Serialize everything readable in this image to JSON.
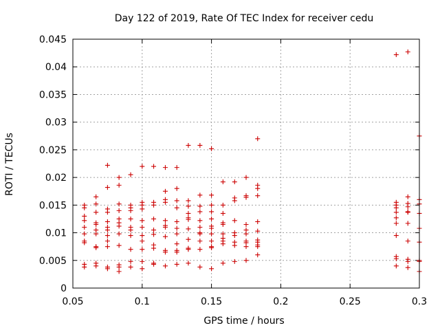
{
  "chart_data": {
    "type": "scatter",
    "title": "Day 122 of 2019, Rate Of TEC Index for receiver cedu",
    "xlabel": "GPS time / hours",
    "ylabel": "ROTI / TECUs",
    "xlim": [
      0.05,
      0.3
    ],
    "ylim": [
      0,
      0.045
    ],
    "xticks": [
      0.05,
      0.1,
      0.15,
      0.2,
      0.25,
      0.3
    ],
    "xtick_labels": [
      "0.05",
      "0.1",
      "0.15",
      "0.2",
      "0.25",
      "0.3"
    ],
    "yticks": [
      0,
      0.005,
      0.01,
      0.015,
      0.02,
      0.025,
      0.03,
      0.035,
      0.04,
      0.045
    ],
    "ytick_labels": [
      "0",
      "0.005",
      "0.01",
      "0.015",
      "0.02",
      "0.025",
      "0.03",
      "0.035",
      "0.04",
      "0.045"
    ],
    "grid": true,
    "marker": "plus",
    "color": "#cc0000",
    "series": [
      {
        "name": "ROTI",
        "points": [
          [
            0.0583,
            0.015
          ],
          [
            0.0583,
            0.0145
          ],
          [
            0.0583,
            0.013
          ],
          [
            0.0583,
            0.0122
          ],
          [
            0.0583,
            0.011
          ],
          [
            0.0583,
            0.0098
          ],
          [
            0.0583,
            0.0085
          ],
          [
            0.0583,
            0.0082
          ],
          [
            0.0583,
            0.0043
          ],
          [
            0.0583,
            0.0038
          ],
          [
            0.0667,
            0.0165
          ],
          [
            0.0667,
            0.0152
          ],
          [
            0.0667,
            0.0137
          ],
          [
            0.0667,
            0.0118
          ],
          [
            0.0667,
            0.0115
          ],
          [
            0.0667,
            0.0105
          ],
          [
            0.0667,
            0.0098
          ],
          [
            0.0667,
            0.0075
          ],
          [
            0.0667,
            0.0073
          ],
          [
            0.0667,
            0.0045
          ],
          [
            0.0667,
            0.004
          ],
          [
            0.075,
            0.0222
          ],
          [
            0.075,
            0.0182
          ],
          [
            0.075,
            0.0143
          ],
          [
            0.075,
            0.0137
          ],
          [
            0.075,
            0.012
          ],
          [
            0.075,
            0.011
          ],
          [
            0.075,
            0.0105
          ],
          [
            0.075,
            0.0095
          ],
          [
            0.075,
            0.0085
          ],
          [
            0.075,
            0.0075
          ],
          [
            0.075,
            0.0038
          ],
          [
            0.075,
            0.0035
          ],
          [
            0.0833,
            0.02
          ],
          [
            0.0833,
            0.0186
          ],
          [
            0.0833,
            0.0152
          ],
          [
            0.0833,
            0.014
          ],
          [
            0.0833,
            0.0125
          ],
          [
            0.0833,
            0.0118
          ],
          [
            0.0833,
            0.0112
          ],
          [
            0.0833,
            0.0098
          ],
          [
            0.0833,
            0.0077
          ],
          [
            0.0833,
            0.0042
          ],
          [
            0.0833,
            0.0038
          ],
          [
            0.0833,
            0.003
          ],
          [
            0.0917,
            0.0205
          ],
          [
            0.0917,
            0.015
          ],
          [
            0.0917,
            0.0145
          ],
          [
            0.0917,
            0.014
          ],
          [
            0.0917,
            0.0125
          ],
          [
            0.0917,
            0.011
          ],
          [
            0.0917,
            0.0105
          ],
          [
            0.0917,
            0.0095
          ],
          [
            0.0917,
            0.007
          ],
          [
            0.0917,
            0.0048
          ],
          [
            0.0917,
            0.0038
          ],
          [
            0.1,
            0.022
          ],
          [
            0.1,
            0.0155
          ],
          [
            0.1,
            0.015
          ],
          [
            0.1,
            0.0143
          ],
          [
            0.1,
            0.0122
          ],
          [
            0.1,
            0.011
          ],
          [
            0.1,
            0.0095
          ],
          [
            0.1,
            0.0085
          ],
          [
            0.1,
            0.007
          ],
          [
            0.1,
            0.0048
          ],
          [
            0.1,
            0.0035
          ],
          [
            0.1083,
            0.022
          ],
          [
            0.1083,
            0.0155
          ],
          [
            0.1083,
            0.015
          ],
          [
            0.1083,
            0.0125
          ],
          [
            0.1083,
            0.0105
          ],
          [
            0.1083,
            0.0097
          ],
          [
            0.1083,
            0.0078
          ],
          [
            0.1083,
            0.0072
          ],
          [
            0.1083,
            0.0045
          ],
          [
            0.1083,
            0.0043
          ],
          [
            0.1167,
            0.0218
          ],
          [
            0.1167,
            0.0175
          ],
          [
            0.1167,
            0.016
          ],
          [
            0.1167,
            0.0155
          ],
          [
            0.1167,
            0.0122
          ],
          [
            0.1167,
            0.0113
          ],
          [
            0.1167,
            0.011
          ],
          [
            0.1167,
            0.0093
          ],
          [
            0.1167,
            0.0068
          ],
          [
            0.1167,
            0.0065
          ],
          [
            0.1167,
            0.004
          ],
          [
            0.125,
            0.0218
          ],
          [
            0.125,
            0.018
          ],
          [
            0.125,
            0.0158
          ],
          [
            0.125,
            0.0145
          ],
          [
            0.125,
            0.012
          ],
          [
            0.125,
            0.0108
          ],
          [
            0.125,
            0.0098
          ],
          [
            0.125,
            0.008
          ],
          [
            0.125,
            0.0068
          ],
          [
            0.125,
            0.0065
          ],
          [
            0.125,
            0.0043
          ],
          [
            0.1333,
            0.0258
          ],
          [
            0.1333,
            0.0158
          ],
          [
            0.1333,
            0.0148
          ],
          [
            0.1333,
            0.0135
          ],
          [
            0.1333,
            0.0127
          ],
          [
            0.1333,
            0.0124
          ],
          [
            0.1333,
            0.0107
          ],
          [
            0.1333,
            0.0088
          ],
          [
            0.1333,
            0.0072
          ],
          [
            0.1333,
            0.007
          ],
          [
            0.1333,
            0.0045
          ],
          [
            0.1417,
            0.0258
          ],
          [
            0.1417,
            0.0168
          ],
          [
            0.1417,
            0.0148
          ],
          [
            0.1417,
            0.0138
          ],
          [
            0.1417,
            0.0122
          ],
          [
            0.1417,
            0.011
          ],
          [
            0.1417,
            0.01
          ],
          [
            0.1417,
            0.0098
          ],
          [
            0.1417,
            0.0085
          ],
          [
            0.1417,
            0.007
          ],
          [
            0.1417,
            0.0038
          ],
          [
            0.15,
            0.0252
          ],
          [
            0.15,
            0.0168
          ],
          [
            0.15,
            0.015
          ],
          [
            0.15,
            0.0138
          ],
          [
            0.15,
            0.0125
          ],
          [
            0.15,
            0.0112
          ],
          [
            0.15,
            0.0108
          ],
          [
            0.15,
            0.0098
          ],
          [
            0.15,
            0.0085
          ],
          [
            0.15,
            0.0075
          ],
          [
            0.15,
            0.0073
          ],
          [
            0.15,
            0.0035
          ],
          [
            0.1583,
            0.0192
          ],
          [
            0.1583,
            0.015
          ],
          [
            0.1583,
            0.0135
          ],
          [
            0.1583,
            0.0118
          ],
          [
            0.1583,
            0.0115
          ],
          [
            0.1583,
            0.0098
          ],
          [
            0.1583,
            0.009
          ],
          [
            0.1583,
            0.0085
          ],
          [
            0.1583,
            0.008
          ],
          [
            0.1583,
            0.0045
          ],
          [
            0.1667,
            0.0192
          ],
          [
            0.1667,
            0.0163
          ],
          [
            0.1667,
            0.0158
          ],
          [
            0.1667,
            0.0122
          ],
          [
            0.1667,
            0.01
          ],
          [
            0.1667,
            0.0095
          ],
          [
            0.1667,
            0.0083
          ],
          [
            0.1667,
            0.0077
          ],
          [
            0.1667,
            0.0048
          ],
          [
            0.175,
            0.02
          ],
          [
            0.175,
            0.0167
          ],
          [
            0.175,
            0.0164
          ],
          [
            0.175,
            0.0115
          ],
          [
            0.175,
            0.0105
          ],
          [
            0.175,
            0.0098
          ],
          [
            0.175,
            0.0085
          ],
          [
            0.175,
            0.0082
          ],
          [
            0.175,
            0.0075
          ],
          [
            0.175,
            0.005
          ],
          [
            0.1833,
            0.027
          ],
          [
            0.1833,
            0.0186
          ],
          [
            0.1833,
            0.018
          ],
          [
            0.1833,
            0.0167
          ],
          [
            0.1833,
            0.012
          ],
          [
            0.1833,
            0.0103
          ],
          [
            0.1833,
            0.0087
          ],
          [
            0.1833,
            0.0083
          ],
          [
            0.1833,
            0.0078
          ],
          [
            0.1833,
            0.0075
          ],
          [
            0.1833,
            0.006
          ],
          [
            0.2833,
            0.0422
          ],
          [
            0.2833,
            0.0155
          ],
          [
            0.2833,
            0.015
          ],
          [
            0.2833,
            0.0145
          ],
          [
            0.2833,
            0.0137
          ],
          [
            0.2833,
            0.0127
          ],
          [
            0.2833,
            0.0117
          ],
          [
            0.2833,
            0.0095
          ],
          [
            0.2833,
            0.0057
          ],
          [
            0.2833,
            0.0053
          ],
          [
            0.2833,
            0.004
          ],
          [
            0.2917,
            0.0427
          ],
          [
            0.2917,
            0.0165
          ],
          [
            0.2917,
            0.0153
          ],
          [
            0.2917,
            0.0147
          ],
          [
            0.2917,
            0.0138
          ],
          [
            0.2917,
            0.0137
          ],
          [
            0.2917,
            0.0117
          ],
          [
            0.2917,
            0.0085
          ],
          [
            0.2917,
            0.0052
          ],
          [
            0.2917,
            0.0048
          ],
          [
            0.2917,
            0.0037
          ],
          [
            0.3,
            0.0275
          ],
          [
            0.3,
            0.016
          ],
          [
            0.3,
            0.0152
          ],
          [
            0.3,
            0.0135
          ],
          [
            0.3,
            0.0108
          ],
          [
            0.3,
            0.0083
          ],
          [
            0.3,
            0.005
          ],
          [
            0.3,
            0.0048
          ],
          [
            0.3,
            0.003
          ]
        ]
      }
    ]
  }
}
